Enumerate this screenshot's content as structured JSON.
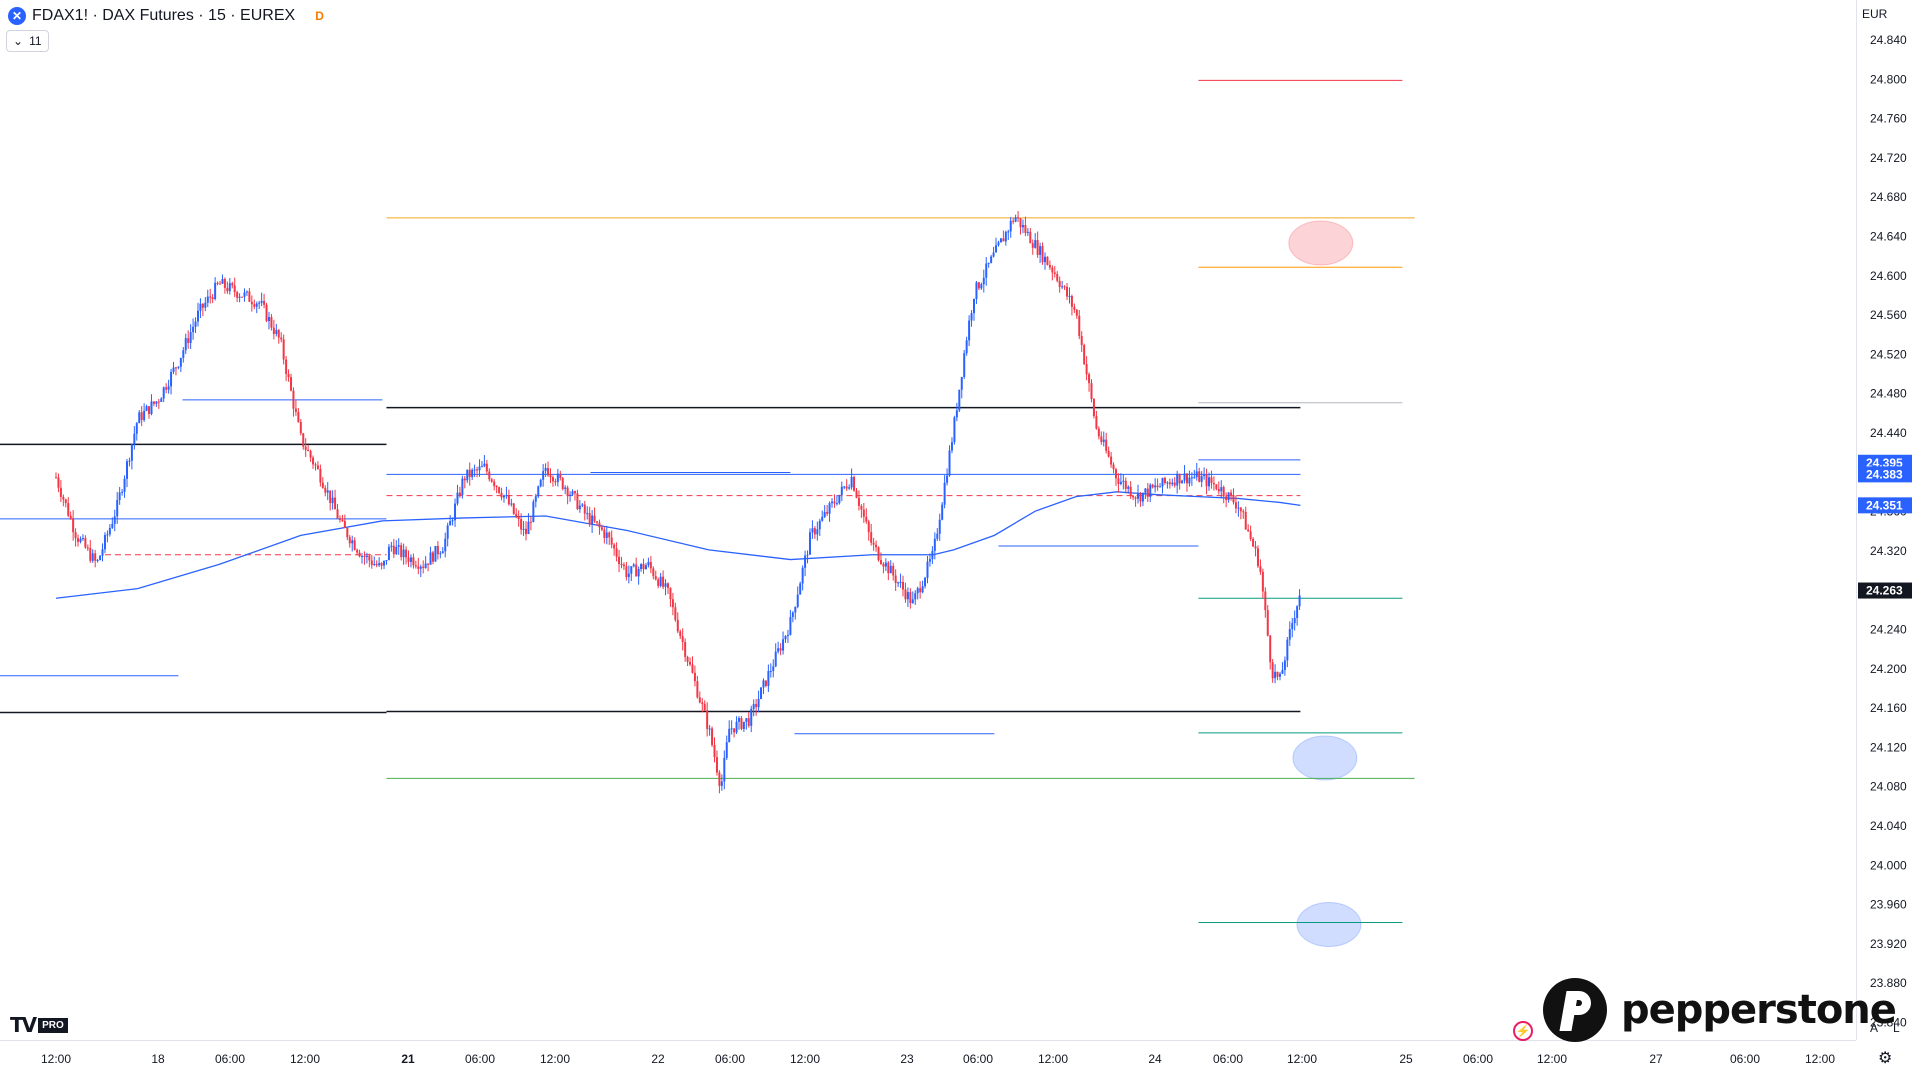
{
  "header": {
    "symbol": "FDAX1!",
    "name": "DAX Futures",
    "interval": "15",
    "exchange": "EUREX",
    "title_text": "FDAX1! · DAX Futures · 15 · EUREX",
    "delay_badge": "D",
    "indicators_count": "11"
  },
  "currency": "EUR",
  "logos": {
    "tradingview_badge": "PRO",
    "broker": "pepperstone"
  },
  "axis_buttons": {
    "auto": "A",
    "log": "L"
  },
  "icons": {
    "symbol": "dax-logo-icon",
    "toggle": "chevron-down-icon",
    "settings": "gear-icon",
    "alert": "lightning-icon"
  },
  "chart_data": {
    "type": "candlestick",
    "title": "FDAX1! · DAX Futures · 15 · EUREX",
    "xlabel": "",
    "ylabel": "",
    "ylim": [
      23860,
      24860
    ],
    "grid": false,
    "colors": {
      "up": "#2962ff",
      "down": "#f23645",
      "ma": "#2962ff"
    },
    "time_ticks": [
      {
        "label": "12:00",
        "bold": false
      },
      {
        "label": "18",
        "bold": false
      },
      {
        "label": "06:00",
        "bold": false
      },
      {
        "label": "12:00",
        "bold": false
      },
      {
        "label": "21",
        "bold": true
      },
      {
        "label": "06:00",
        "bold": false
      },
      {
        "label": "12:00",
        "bold": false
      },
      {
        "label": "22",
        "bold": false
      },
      {
        "label": "06:00",
        "bold": false
      },
      {
        "label": "12:00",
        "bold": false
      },
      {
        "label": "23",
        "bold": false
      },
      {
        "label": "06:00",
        "bold": false
      },
      {
        "label": "12:00",
        "bold": false
      },
      {
        "label": "24",
        "bold": false
      },
      {
        "label": "06:00",
        "bold": false
      },
      {
        "label": "12:00",
        "bold": false
      },
      {
        "label": "25",
        "bold": false
      },
      {
        "label": "06:00",
        "bold": false
      },
      {
        "label": "12:00",
        "bold": false
      },
      {
        "label": "27",
        "bold": false
      },
      {
        "label": "06:00",
        "bold": false
      },
      {
        "label": "12:00",
        "bold": false
      }
    ],
    "price_ticks": [
      "24.840",
      "24.800",
      "24.760",
      "24.720",
      "24.680",
      "24.640",
      "24.600",
      "24.560",
      "24.520",
      "24.480",
      "24.440",
      "24.400",
      "24.360",
      "24.320",
      "24.280",
      "24.240",
      "24.200",
      "24.160",
      "24.120",
      "24.080",
      "24.040",
      "24.000",
      "23.960",
      "23.920",
      "23.880",
      "23.840"
    ],
    "price_labels": [
      {
        "text": "24.395",
        "value": 24395,
        "color": "#2962ff"
      },
      {
        "text": "24.383",
        "value": 24383,
        "color": "#2962ff"
      },
      {
        "text": "24.351",
        "value": 24351,
        "color": "#2962ff"
      },
      {
        "text": "24.263",
        "value": 24263,
        "color": "#131722"
      }
    ],
    "price_path": [
      [
        0,
        24380
      ],
      [
        0.5,
        24320
      ],
      [
        1,
        24290
      ],
      [
        1.5,
        24350
      ],
      [
        2,
        24440
      ],
      [
        2.5,
        24460
      ],
      [
        3,
        24500
      ],
      [
        3.5,
        24550
      ],
      [
        4,
        24580
      ],
      [
        4.5,
        24570
      ],
      [
        5,
        24560
      ],
      [
        5.5,
        24520
      ],
      [
        6,
        24420
      ],
      [
        6.5,
        24380
      ],
      [
        7,
        24330
      ],
      [
        7.5,
        24300
      ],
      [
        8,
        24285
      ],
      [
        8.2,
        24310
      ],
      [
        8.5,
        24300
      ],
      [
        9,
        24290
      ],
      [
        9.5,
        24310
      ],
      [
        10,
        24380
      ],
      [
        10.5,
        24390
      ],
      [
        11,
        24360
      ],
      [
        11.5,
        24320
      ],
      [
        12,
        24390
      ],
      [
        12.5,
        24370
      ],
      [
        13,
        24340
      ],
      [
        13.5,
        24320
      ],
      [
        14,
        24280
      ],
      [
        14.5,
        24290
      ],
      [
        15,
        24260
      ],
      [
        15.5,
        24190
      ],
      [
        16,
        24120
      ],
      [
        16.3,
        24060
      ],
      [
        16.5,
        24120
      ],
      [
        17,
        24130
      ],
      [
        17.5,
        24180
      ],
      [
        18,
        24230
      ],
      [
        18.5,
        24320
      ],
      [
        19,
        24350
      ],
      [
        19.5,
        24380
      ],
      [
        20,
        24310
      ],
      [
        20.5,
        24280
      ],
      [
        21,
        24250
      ],
      [
        21.5,
        24300
      ],
      [
        22,
        24430
      ],
      [
        22.3,
        24520
      ],
      [
        22.5,
        24570
      ],
      [
        23,
        24610
      ],
      [
        23.5,
        24650
      ],
      [
        24,
        24620
      ],
      [
        24.5,
        24590
      ],
      [
        25,
        24550
      ],
      [
        25.5,
        24430
      ],
      [
        26,
        24380
      ],
      [
        26.5,
        24360
      ],
      [
        27,
        24370
      ],
      [
        27.5,
        24380
      ],
      [
        28,
        24380
      ],
      [
        28.5,
        24370
      ],
      [
        29,
        24350
      ],
      [
        29.5,
        24290
      ],
      [
        29.8,
        24180
      ],
      [
        30,
        24170
      ],
      [
        30.3,
        24230
      ],
      [
        30.5,
        24263
      ]
    ],
    "ma_path": [
      [
        0,
        24255
      ],
      [
        2,
        24265
      ],
      [
        4,
        24290
      ],
      [
        6,
        24320
      ],
      [
        8,
        24335
      ],
      [
        10,
        24338
      ],
      [
        12,
        24340
      ],
      [
        14,
        24325
      ],
      [
        16,
        24305
      ],
      [
        18,
        24295
      ],
      [
        20,
        24300
      ],
      [
        21.5,
        24300
      ],
      [
        22,
        24305
      ],
      [
        23,
        24320
      ],
      [
        24,
        24345
      ],
      [
        25,
        24360
      ],
      [
        26,
        24365
      ],
      [
        27,
        24362
      ],
      [
        28,
        24360
      ],
      [
        29,
        24358
      ],
      [
        30,
        24354
      ],
      [
        30.5,
        24351
      ]
    ],
    "horizontal_levels": [
      {
        "price": 24790,
        "from": 28,
        "to": 33,
        "color": "#f23645",
        "style": "solid"
      },
      {
        "price": 24648,
        "from": 8.1,
        "to": 33.3,
        "color": "#f5a623",
        "style": "solid"
      },
      {
        "price": 24597,
        "from": 28,
        "to": 33,
        "color": "#ff9800",
        "style": "solid"
      },
      {
        "price": 24457,
        "from": 28,
        "to": 33,
        "color": "#b2b5be",
        "style": "solid"
      },
      {
        "price": 24452,
        "from": 8.1,
        "to": 30.5,
        "color": "#131722",
        "style": "solid"
      },
      {
        "price": 24414,
        "from": 0,
        "to": 8.1,
        "color": "#131722",
        "style": "solid"
      },
      {
        "price": 24460,
        "from": 3.1,
        "to": 8.0,
        "color": "#2962ff",
        "style": "solid"
      },
      {
        "price": 24398,
        "from": 28,
        "to": 30.5,
        "color": "#2962ff",
        "style": "solid"
      },
      {
        "price": 24385,
        "from": 13.1,
        "to": 18,
        "color": "#2962ff",
        "style": "solid"
      },
      {
        "price": 24383,
        "from": 8.1,
        "to": 30.5,
        "color": "#2962ff",
        "style": "solid"
      },
      {
        "price": 24361,
        "from": 8.1,
        "to": 30.5,
        "color": "#f23645",
        "style": "dashed"
      },
      {
        "price": 24300,
        "from": 1.2,
        "to": 8.1,
        "color": "#f23645",
        "style": "dashed"
      },
      {
        "price": 24337,
        "from": 0,
        "to": 8.1,
        "color": "#2962ff",
        "style": "solid"
      },
      {
        "price": 24309,
        "from": 23.1,
        "to": 28,
        "color": "#2962ff",
        "style": "solid"
      },
      {
        "price": 24255,
        "from": 28,
        "to": 33,
        "color": "#089981",
        "style": "solid"
      },
      {
        "price": 24175,
        "from": 0,
        "to": 3.0,
        "color": "#2962ff",
        "style": "solid"
      },
      {
        "price": 24137,
        "from": 0,
        "to": 8.1,
        "color": "#131722",
        "style": "solid"
      },
      {
        "price": 24138,
        "from": 8.1,
        "to": 30.5,
        "color": "#131722",
        "style": "solid"
      },
      {
        "price": 24115,
        "from": 18.1,
        "to": 23,
        "color": "#2962ff",
        "style": "solid"
      },
      {
        "price": 24116,
        "from": 28,
        "to": 33,
        "color": "#089981",
        "style": "solid"
      },
      {
        "price": 24069,
        "from": 8.1,
        "to": 33.3,
        "color": "#4caf50",
        "style": "solid"
      },
      {
        "price": 23920,
        "from": 28,
        "to": 33,
        "color": "#089981",
        "style": "solid"
      }
    ],
    "zones": [
      {
        "price": 24622,
        "at": 31.0,
        "color": "#f23645"
      },
      {
        "price": 24090,
        "at": 31.1,
        "color": "#2962ff"
      },
      {
        "price": 23918,
        "at": 31.2,
        "color": "#2962ff"
      }
    ]
  }
}
